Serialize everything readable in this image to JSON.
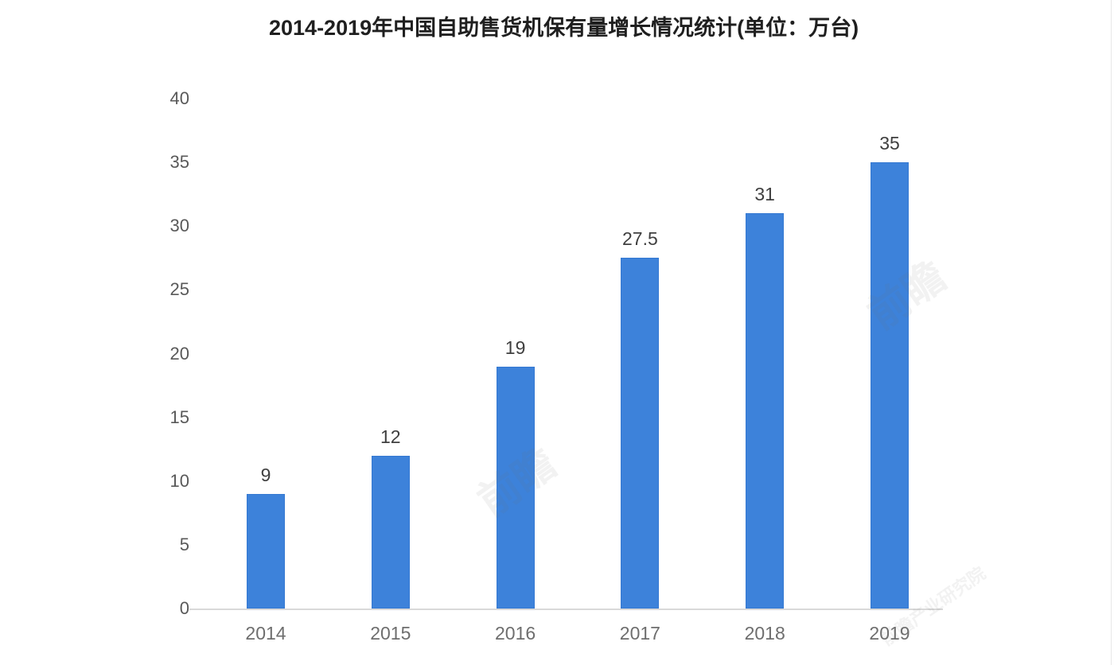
{
  "chart_data": {
    "type": "bar",
    "title": "2014-2019年中国自助售货机保有量增长情况统计(单位：万台)",
    "categories": [
      "2014",
      "2015",
      "2016",
      "2017",
      "2018",
      "2019"
    ],
    "values": [
      9,
      12,
      19,
      27.5,
      31,
      35
    ],
    "value_labels": [
      "9",
      "12",
      "19",
      "27.5",
      "31",
      "35"
    ],
    "xlabel": "",
    "ylabel": "",
    "ylim": [
      0,
      40
    ],
    "yticks": [
      0,
      5,
      10,
      15,
      20,
      25,
      30,
      35,
      40
    ],
    "grid": false,
    "legend": null,
    "bar_color": "#3d82da",
    "axis_line_color": "#d9d9d9",
    "tick_label_color": "#595959",
    "category_label_color": "#6e6e6e",
    "data_label_color": "#3f3f3f",
    "title_color": "#1f1f1f",
    "background": "#ffffff"
  },
  "watermarks": [
    {
      "text": "前瞻"
    },
    {
      "text": "前瞻"
    },
    {
      "text": "前瞻产业研究院"
    }
  ]
}
